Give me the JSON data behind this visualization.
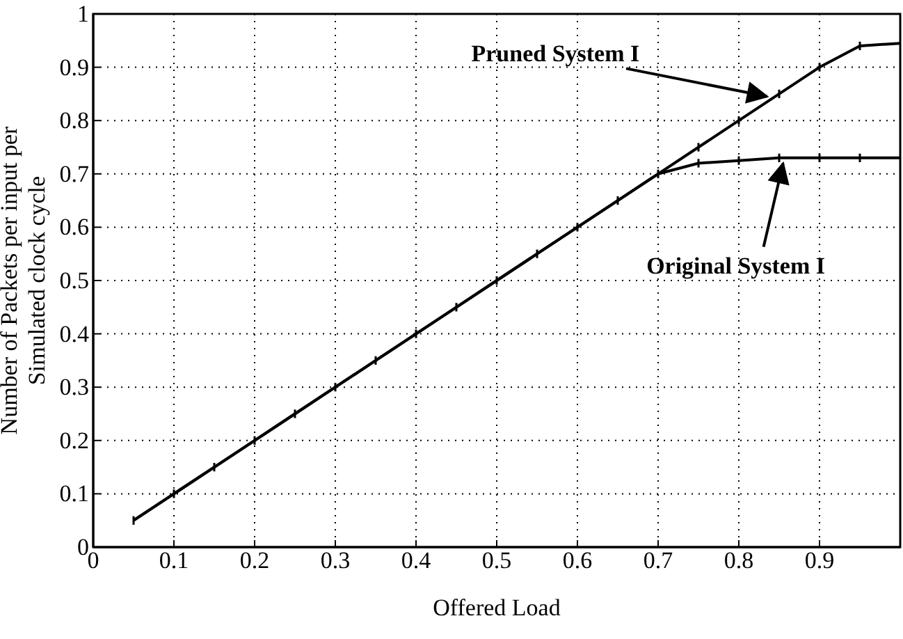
{
  "chart_data": {
    "type": "line",
    "xlabel": "Offered Load",
    "ylabel": "Number of Packets per input per\nSimulated clock cycle",
    "xlim": [
      0,
      1
    ],
    "ylim": [
      0,
      1
    ],
    "xticks": [
      0,
      0.1,
      0.2,
      0.3,
      0.4,
      0.5,
      0.6,
      0.7,
      0.8,
      0.9
    ],
    "yticks": [
      0,
      0.1,
      0.2,
      0.3,
      0.4,
      0.5,
      0.6,
      0.7,
      0.8,
      0.9,
      1
    ],
    "grid": true,
    "line_style": "solid",
    "series": [
      {
        "color": "#000000",
        "x": [
          0.05,
          0.1,
          0.15,
          0.2,
          0.25,
          0.3,
          0.35,
          0.4,
          0.45,
          0.5,
          0.55,
          0.6,
          0.65,
          0.7,
          0.75,
          0.8,
          0.85,
          0.9,
          0.95,
          1.0
        ],
        "values": [
          0.05,
          0.1,
          0.15,
          0.2,
          0.25,
          0.3,
          0.35,
          0.4,
          0.45,
          0.5,
          0.55,
          0.6,
          0.65,
          0.7,
          0.75,
          0.8,
          0.85,
          0.9,
          0.94,
          0.945
        ],
        "errors": [
          0.008,
          0.008,
          0.008,
          0.008,
          0.008,
          0.008,
          0.008,
          0.008,
          0.008,
          0.008,
          0.008,
          0.008,
          0.008,
          0.008,
          0.008,
          0.008,
          0.008,
          0.008,
          0.008,
          null
        ]
      },
      {
        "color": "#000000",
        "x": [
          0.05,
          0.1,
          0.15,
          0.2,
          0.25,
          0.3,
          0.35,
          0.4,
          0.45,
          0.5,
          0.55,
          0.6,
          0.65,
          0.7,
          0.75,
          0.8,
          0.85,
          0.9,
          0.95,
          1.0
        ],
        "values": [
          0.05,
          0.1,
          0.15,
          0.2,
          0.25,
          0.3,
          0.35,
          0.4,
          0.45,
          0.5,
          0.55,
          0.6,
          0.65,
          0.7,
          0.72,
          0.725,
          0.73,
          0.73,
          0.73,
          0.73
        ],
        "errors": [
          null,
          null,
          null,
          null,
          null,
          null,
          null,
          null,
          null,
          null,
          null,
          null,
          null,
          null,
          0.008,
          0.008,
          0.008,
          0.008,
          0.008,
          null
        ]
      }
    ],
    "annotations": [
      {
        "text": "Pruned System I",
        "x": 0.84,
        "y": 0.84
      },
      {
        "text": "Original System I",
        "x": 0.86,
        "y": 0.73
      }
    ]
  }
}
